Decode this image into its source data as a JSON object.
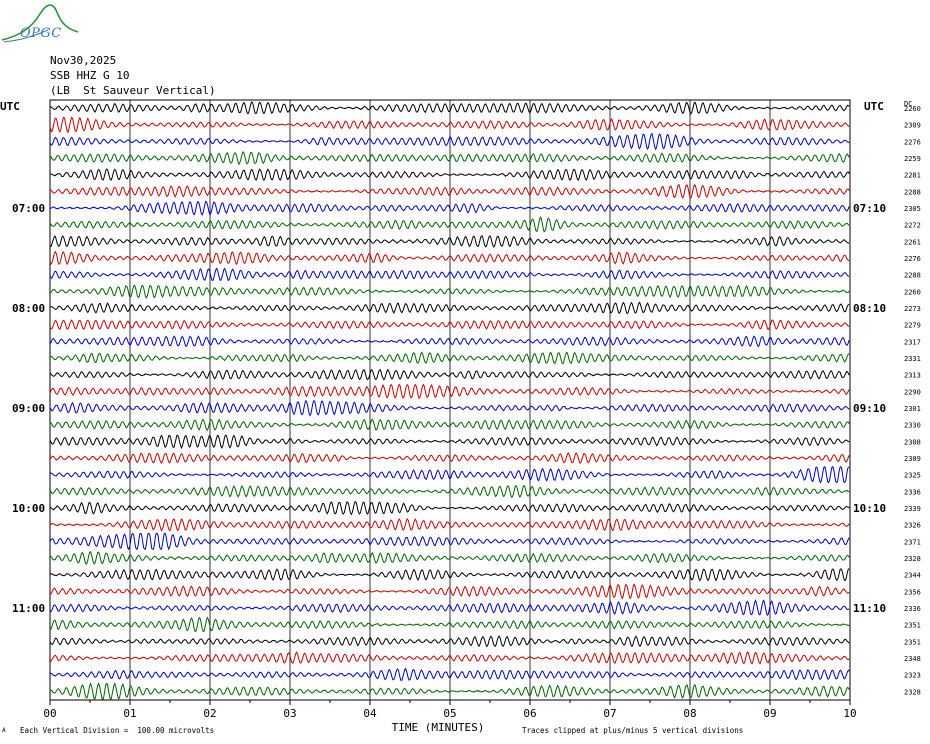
{
  "header": {
    "logo_text": "OPGC",
    "date": "Nov30,2025",
    "station": "SSB HHZ G 10",
    "location": "(LB  St Sauveur Vertical)"
  },
  "axes": {
    "left_label": "UTC",
    "right_label": "UTC",
    "right_col_header": "DC",
    "xlabel": "TIME (MINUTES)"
  },
  "footer": {
    "scale_note": "Each Vertical Division =  100.00 microvolts",
    "clip_note": "Traces clipped at plus/minus 5 vertical divisions",
    "corner_mark": "A"
  },
  "colors": {
    "trace_cycle": [
      "#000000",
      "#cc0000",
      "#0000cc",
      "#006600"
    ],
    "grid": "#000000"
  },
  "chart_data": {
    "type": "helicorder",
    "xlim": [
      0,
      10
    ],
    "x_ticks": [
      "00",
      "01",
      "02",
      "03",
      "04",
      "05",
      "06",
      "07",
      "08",
      "09",
      "10"
    ],
    "minutes_per_line": 10,
    "left_time_labels": [
      {
        "line": 6,
        "label": "07:00"
      },
      {
        "line": 12,
        "label": "08:00"
      },
      {
        "line": 18,
        "label": "09:00"
      },
      {
        "line": 24,
        "label": "10:00"
      },
      {
        "line": 30,
        "label": "11:00"
      }
    ],
    "right_time_labels": [
      {
        "line": 6,
        "label": "07:10"
      },
      {
        "line": 12,
        "label": "08:10"
      },
      {
        "line": 18,
        "label": "09:10"
      },
      {
        "line": 24,
        "label": "10:10"
      },
      {
        "line": 30,
        "label": "11:10"
      }
    ],
    "dc_offsets": [
      2260,
      2309,
      2276,
      2259,
      2281,
      2288,
      2305,
      2272,
      2261,
      2276,
      2288,
      2260,
      2273,
      2279,
      2317,
      2331,
      2313,
      2290,
      2301,
      2330,
      2308,
      2309,
      2325,
      2336,
      2339,
      2326,
      2371,
      2328,
      2344,
      2356,
      2336,
      2351,
      2351,
      2348,
      2323,
      2328
    ],
    "trace_count": 36
  }
}
